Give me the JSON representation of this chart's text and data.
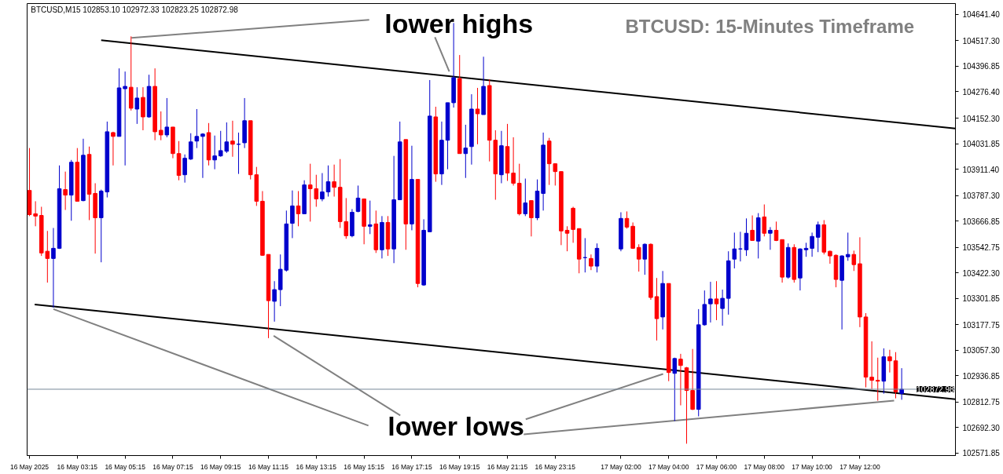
{
  "chart_data": {
    "type": "candlestick",
    "title": "BTCUSD: 15-Minutes Timeframe",
    "annotations": [
      "BTCUSD,M15  102853.10 102972.33 102823.25 102872.98",
      "lower highs",
      "lower lows"
    ],
    "x": [
      "2025-05-16T01:15",
      "2025-05-16T01:30",
      "2025-05-16T01:45",
      "2025-05-16T02:00",
      "2025-05-16T02:15",
      "2025-05-16T02:30",
      "2025-05-16T02:45",
      "2025-05-16T03:00",
      "2025-05-16T03:15",
      "2025-05-16T03:30",
      "2025-05-16T03:45",
      "2025-05-16T04:00",
      "2025-05-16T04:15",
      "2025-05-16T04:30",
      "2025-05-16T04:45",
      "2025-05-16T05:00",
      "2025-05-16T05:15",
      "2025-05-16T05:30",
      "2025-05-16T05:45",
      "2025-05-16T06:00",
      "2025-05-16T06:15",
      "2025-05-16T06:30",
      "2025-05-16T06:45",
      "2025-05-16T07:00",
      "2025-05-16T07:15",
      "2025-05-16T07:30",
      "2025-05-16T07:45",
      "2025-05-16T08:00",
      "2025-05-16T08:15",
      "2025-05-16T08:30",
      "2025-05-16T08:45",
      "2025-05-16T09:00",
      "2025-05-16T09:15",
      "2025-05-16T09:30",
      "2025-05-16T09:45",
      "2025-05-16T10:00",
      "2025-05-16T10:15",
      "2025-05-16T10:30",
      "2025-05-16T10:45",
      "2025-05-16T11:00",
      "2025-05-16T11:15",
      "2025-05-16T11:30",
      "2025-05-16T11:45",
      "2025-05-16T12:00",
      "2025-05-16T12:15",
      "2025-05-16T12:30",
      "2025-05-16T12:45",
      "2025-05-16T13:00",
      "2025-05-16T13:15",
      "2025-05-16T13:30",
      "2025-05-16T13:45",
      "2025-05-16T14:00",
      "2025-05-16T14:15",
      "2025-05-16T14:30",
      "2025-05-16T14:45",
      "2025-05-16T15:00",
      "2025-05-16T15:15",
      "2025-05-16T15:30",
      "2025-05-16T15:45",
      "2025-05-16T16:00",
      "2025-05-16T16:15",
      "2025-05-16T16:30",
      "2025-05-16T16:45",
      "2025-05-16T17:00",
      "2025-05-16T17:15",
      "2025-05-16T17:30",
      "2025-05-16T17:45",
      "2025-05-16T18:00",
      "2025-05-16T18:15",
      "2025-05-16T18:30",
      "2025-05-16T18:45",
      "2025-05-16T19:00",
      "2025-05-16T19:15",
      "2025-05-16T19:30",
      "2025-05-16T19:45",
      "2025-05-16T20:00",
      "2025-05-16T20:15",
      "2025-05-16T20:30",
      "2025-05-16T20:45",
      "2025-05-16T21:00",
      "2025-05-16T21:15",
      "2025-05-16T21:30",
      "2025-05-16T21:45",
      "2025-05-16T22:00",
      "2025-05-16T22:15",
      "2025-05-16T22:30",
      "2025-05-16T22:45",
      "2025-05-16T23:00",
      "2025-05-16T23:15",
      "2025-05-16T23:30",
      "2025-05-16T23:45",
      "2025-05-17T00:00",
      "2025-05-17T00:15",
      "2025-05-17T00:30",
      "2025-05-17T00:45",
      "2025-05-17T01:00",
      "2025-05-17T02:00",
      "2025-05-17T02:15",
      "2025-05-17T02:30",
      "2025-05-17T02:45",
      "2025-05-17T03:00",
      "2025-05-17T03:15",
      "2025-05-17T03:30",
      "2025-05-17T03:45",
      "2025-05-17T04:00",
      "2025-05-17T04:15",
      "2025-05-17T04:30",
      "2025-05-17T04:45",
      "2025-05-17T05:00",
      "2025-05-17T05:15",
      "2025-05-17T05:30",
      "2025-05-17T05:45",
      "2025-05-17T06:00",
      "2025-05-17T06:15",
      "2025-05-17T06:30",
      "2025-05-17T06:45",
      "2025-05-17T07:00",
      "2025-05-17T07:15",
      "2025-05-17T07:30",
      "2025-05-17T07:45",
      "2025-05-17T08:00",
      "2025-05-17T08:15",
      "2025-05-17T08:30",
      "2025-05-17T08:45",
      "2025-05-17T09:00",
      "2025-05-17T09:15",
      "2025-05-17T09:30",
      "2025-05-17T09:45",
      "2025-05-17T10:00",
      "2025-05-17T10:15",
      "2025-05-17T10:30",
      "2025-05-17T10:45",
      "2025-05-17T11:00",
      "2025-05-17T11:15",
      "2025-05-17T11:30",
      "2025-05-17T11:45",
      "2025-05-17T12:00",
      "2025-05-17T12:15",
      "2025-05-17T12:30",
      "2025-05-17T12:45",
      "2025-05-17T13:00",
      "2025-05-17T13:15",
      "2025-05-17T13:30",
      "2025-05-17T13:45"
    ],
    "xlim": [
      "2025-05-16T01:09",
      "2025-05-17T16:00"
    ],
    "xticks": [
      {
        "value": "2025-05-16T01:15",
        "label": "16 May 2025"
      },
      {
        "value": "2025-05-16T03:15",
        "label": "16 May 03:15"
      },
      {
        "value": "2025-05-16T05:15",
        "label": "16 May 05:15"
      },
      {
        "value": "2025-05-16T07:15",
        "label": "16 May 07:15"
      },
      {
        "value": "2025-05-16T09:15",
        "label": "16 May 09:15"
      },
      {
        "value": "2025-05-16T11:15",
        "label": "16 May 11:15"
      },
      {
        "value": "2025-05-16T13:15",
        "label": "16 May 13:15"
      },
      {
        "value": "2025-05-16T15:15",
        "label": "16 May 15:15"
      },
      {
        "value": "2025-05-16T17:15",
        "label": "16 May 17:15"
      },
      {
        "value": "2025-05-16T19:15",
        "label": "16 May 19:15"
      },
      {
        "value": "2025-05-16T21:15",
        "label": "16 May 21:15"
      },
      {
        "value": "2025-05-16T23:15",
        "label": "16 May 23:15"
      },
      {
        "value": "2025-05-17T02:00",
        "label": "17 May 02:00"
      },
      {
        "value": "2025-05-17T04:00",
        "label": "17 May 04:00"
      },
      {
        "value": "2025-05-17T06:00",
        "label": "17 May 06:00"
      },
      {
        "value": "2025-05-17T08:00",
        "label": "17 May 08:00"
      },
      {
        "value": "2025-05-17T10:00",
        "label": "17 May 10:00"
      },
      {
        "value": "2025-05-17T12:00",
        "label": "17 May 12:00"
      }
    ],
    "ylim": [
      102560,
      104693
    ],
    "yticks": [
      {
        "value": 102571.85,
        "label": "102571.85"
      },
      {
        "value": 102692.3,
        "label": "102692.30"
      },
      {
        "value": 102812.75,
        "label": "102812.75"
      },
      {
        "value": 102936.85,
        "label": "102936.85"
      },
      {
        "value": 103057.3,
        "label": "103057.30"
      },
      {
        "value": 103177.75,
        "label": "103177.75"
      },
      {
        "value": 103301.85,
        "label": "103301.85"
      },
      {
        "value": 103422.3,
        "label": "103422.30"
      },
      {
        "value": 103542.75,
        "label": "103542.75"
      },
      {
        "value": 103666.85,
        "label": "103666.85"
      },
      {
        "value": 103787.3,
        "label": "103787.30"
      },
      {
        "value": 103911.4,
        "label": "103911.40"
      },
      {
        "value": 104031.85,
        "label": "104031.85"
      },
      {
        "value": 104152.3,
        "label": "104152.30"
      },
      {
        "value": 104276.4,
        "label": "104276.40"
      },
      {
        "value": 104396.85,
        "label": "104396.85"
      },
      {
        "value": 104517.3,
        "label": "104517.30"
      },
      {
        "value": 104641.4,
        "label": "104641.40"
      }
    ],
    "grid": false,
    "ref_lines": [
      {
        "axis": "y",
        "value": 102872.98,
        "label": "102872.98",
        "color": "#778899"
      }
    ],
    "ohlc": [
      [
        103811,
        104011,
        103690,
        103697
      ],
      [
        103701,
        103760,
        103642,
        103690
      ],
      [
        103693,
        103734,
        103502,
        103516
      ],
      [
        103524,
        103620,
        103376,
        103490
      ],
      [
        103490,
        103634,
        103258,
        103538
      ],
      [
        103538,
        103929,
        103535,
        103819
      ],
      [
        103815,
        103900,
        103719,
        103789
      ],
      [
        103789,
        103955,
        103668,
        103944
      ],
      [
        103944,
        104011,
        103760,
        103760
      ],
      [
        103763,
        104055,
        103760,
        103977
      ],
      [
        103981,
        104018,
        103671,
        103793
      ],
      [
        103797,
        103845,
        103513,
        103682
      ],
      [
        103682,
        103815,
        103472,
        103808
      ],
      [
        103804,
        104136,
        103778,
        104088
      ],
      [
        104084,
        104088,
        103929,
        104066
      ],
      [
        104066,
        104387,
        104066,
        104295
      ],
      [
        104291,
        104372,
        103929,
        104302
      ],
      [
        104298,
        104538,
        104188,
        104199
      ],
      [
        104195,
        104298,
        104125,
        104247
      ],
      [
        104250,
        104298,
        104095,
        104158
      ],
      [
        104158,
        104357,
        104154,
        104302
      ],
      [
        104302,
        104387,
        104048,
        104088
      ],
      [
        104095,
        104184,
        104048,
        104073
      ],
      [
        104073,
        104247,
        104062,
        104110
      ],
      [
        104110,
        104110,
        103963,
        103985
      ],
      [
        103985,
        104044,
        103859,
        103882
      ],
      [
        103885,
        103981,
        103848,
        103963
      ],
      [
        103959,
        104081,
        103955,
        104040
      ],
      [
        104044,
        104195,
        104011,
        104066
      ],
      [
        104066,
        104081,
        103870,
        104077
      ],
      [
        104084,
        104129,
        103929,
        103955
      ],
      [
        103955,
        104070,
        103911,
        103974
      ],
      [
        103974,
        104092,
        103970,
        103999
      ],
      [
        103996,
        104132,
        103988,
        104040
      ],
      [
        104044,
        104140,
        103970,
        104029
      ],
      [
        104029,
        104084,
        103889,
        104029
      ],
      [
        104036,
        104247,
        104011,
        104140
      ],
      [
        104140,
        104140,
        103863,
        103885
      ],
      [
        103885,
        103922,
        103738,
        103760
      ],
      [
        103760,
        103808,
        103502,
        103505
      ],
      [
        103509,
        103509,
        103114,
        103291
      ],
      [
        103288,
        103383,
        103192,
        103343
      ],
      [
        103343,
        103509,
        103265,
        103439
      ],
      [
        103435,
        103716,
        103428,
        103653
      ],
      [
        103656,
        103811,
        103586,
        103738
      ],
      [
        103738,
        103808,
        103642,
        103701
      ],
      [
        103701,
        103859,
        103701,
        103837
      ],
      [
        103837,
        103937,
        103664,
        103819
      ],
      [
        103819,
        103885,
        103734,
        103771
      ],
      [
        103771,
        103893,
        103760,
        103804
      ],
      [
        103804,
        103929,
        103782,
        103852
      ],
      [
        103852,
        103933,
        103782,
        103826
      ],
      [
        103826,
        103959,
        103634,
        103664
      ],
      [
        103664,
        103775,
        103583,
        103597
      ],
      [
        103597,
        103723,
        103590,
        103708
      ],
      [
        103712,
        103834,
        103708,
        103775
      ],
      [
        103771,
        103771,
        103557,
        103642
      ],
      [
        103642,
        103763,
        103605,
        103649
      ],
      [
        103653,
        103716,
        103516,
        103531
      ],
      [
        103531,
        103690,
        103490,
        103660
      ],
      [
        103660,
        103690,
        103502,
        103535
      ],
      [
        103535,
        103974,
        103468,
        103767
      ],
      [
        103767,
        104136,
        103767,
        104040
      ],
      [
        104051,
        104051,
        103531,
        103653
      ],
      [
        103653,
        104022,
        103623,
        103863
      ],
      [
        103863,
        103863,
        103354,
        103372
      ],
      [
        103365,
        103675,
        103361,
        103623
      ],
      [
        103616,
        104332,
        103616,
        104162
      ],
      [
        104158,
        104206,
        103852,
        103889
      ],
      [
        103889,
        104136,
        103837,
        104048
      ],
      [
        104048,
        104225,
        103911,
        104225
      ],
      [
        104225,
        104601,
        104202,
        104343
      ],
      [
        104339,
        104450,
        103985,
        103985
      ],
      [
        103985,
        104121,
        103870,
        104011
      ],
      [
        104018,
        104265,
        103933,
        104195
      ],
      [
        104195,
        104295,
        104029,
        104173
      ],
      [
        104169,
        104442,
        104169,
        104302
      ],
      [
        104306,
        104335,
        103948,
        104048
      ],
      [
        104048,
        104095,
        103767,
        103889
      ],
      [
        103885,
        104092,
        103845,
        104022
      ],
      [
        104018,
        104125,
        103856,
        103893
      ],
      [
        103893,
        104062,
        103834,
        103845
      ],
      [
        103845,
        103937,
        103693,
        103701
      ],
      [
        103701,
        103867,
        103690,
        103752
      ],
      [
        103763,
        103763,
        103594,
        103682
      ],
      [
        103682,
        103863,
        103671,
        103808
      ],
      [
        103797,
        104084,
        103716,
        104025
      ],
      [
        104044,
        104059,
        103837,
        103937
      ],
      [
        103937,
        103937,
        103834,
        103900
      ],
      [
        103900,
        103900,
        103553,
        103620
      ],
      [
        103623,
        103642,
        103524,
        103609
      ],
      [
        103727,
        103734,
        103564,
        103627
      ],
      [
        103631,
        103631,
        103420,
        103487
      ],
      [
        103494,
        103586,
        103424,
        103494
      ],
      [
        103490,
        103509,
        103435,
        103454
      ],
      [
        103454,
        103561,
        103424,
        103538
      ],
      [
        103535,
        103708,
        103524,
        103679
      ],
      [
        103679,
        103712,
        103631,
        103638
      ],
      [
        103642,
        103660,
        103535,
        103538
      ],
      [
        103542,
        103557,
        103428,
        103487
      ],
      [
        103487,
        103561,
        103413,
        103557
      ],
      [
        103557,
        103561,
        103295,
        103306
      ],
      [
        103310,
        103398,
        103103,
        103206
      ],
      [
        103214,
        103431,
        103155,
        103372
      ],
      [
        103372,
        103372,
        102911,
        102952
      ],
      [
        102948,
        103022,
        102723,
        103018
      ],
      [
        103015,
        103040,
        102797,
        102985
      ],
      [
        102974,
        102978,
        102616,
        102867
      ],
      [
        102867,
        103063,
        102775,
        102778
      ],
      [
        102778,
        103251,
        102745,
        103177
      ],
      [
        103177,
        103339,
        103173,
        103273
      ],
      [
        103276,
        103380,
        103188,
        103299
      ],
      [
        103299,
        103383,
        103199,
        103276
      ],
      [
        103254,
        103343,
        103173,
        103302
      ],
      [
        103302,
        103524,
        103225,
        103479
      ],
      [
        103487,
        103612,
        103443,
        103535
      ],
      [
        103535,
        103616,
        103476,
        103535
      ],
      [
        103531,
        103679,
        103502,
        103609
      ],
      [
        103623,
        103693,
        103575,
        103575
      ],
      [
        103572,
        103704,
        103490,
        103682
      ],
      [
        103686,
        103745,
        103594,
        103609
      ],
      [
        103609,
        103638,
        103531,
        103623
      ],
      [
        103623,
        103664,
        103572,
        103575
      ],
      [
        103579,
        103579,
        103376,
        103402
      ],
      [
        103402,
        103561,
        103395,
        103542
      ],
      [
        103542,
        103557,
        103376,
        103391
      ],
      [
        103398,
        103538,
        103339,
        103535
      ],
      [
        103531,
        103564,
        103498,
        103538
      ],
      [
        103538,
        103612,
        103498,
        103594
      ],
      [
        103590,
        103664,
        103520,
        103649
      ],
      [
        103649,
        103671,
        103509,
        103520
      ],
      [
        103524,
        103527,
        103465,
        103502
      ],
      [
        103505,
        103509,
        103354,
        103391
      ],
      [
        103387,
        103505,
        103155,
        103502
      ],
      [
        103498,
        103612,
        103479,
        103509
      ],
      [
        103509,
        103527,
        103431,
        103461
      ],
      [
        103465,
        103590,
        103166,
        103214
      ],
      [
        103214,
        103232,
        102882,
        102930
      ],
      [
        102930,
        103099,
        102874,
        102915
      ],
      [
        102915,
        103022,
        102819,
        102911
      ],
      [
        102911,
        103066,
        102852,
        103026
      ],
      [
        103026,
        103059,
        102952,
        103007
      ],
      [
        103007,
        103048,
        102830,
        102860
      ],
      [
        102853.1,
        102972.33,
        102823.25,
        102872.98
      ]
    ],
    "colors": [
      "#ff0000",
      "#ff0000",
      "#ff0000",
      "#ff0000",
      "#0000cc",
      "#0000cc",
      "#ff0000",
      "#0000cc",
      "#ff0000",
      "#0000cc",
      "#ff0000",
      "#ff0000",
      "#0000cc",
      "#0000cc",
      "#ff0000",
      "#0000cc",
      "#0000cc",
      "#ff0000",
      "#0000cc",
      "#ff0000",
      "#0000cc",
      "#ff0000",
      "#ff0000",
      "#0000cc",
      "#ff0000",
      "#ff0000",
      "#0000cc",
      "#0000cc",
      "#0000cc",
      "#0000cc",
      "#ff0000",
      "#0000cc",
      "#0000cc",
      "#0000cc",
      "#ff0000",
      "#0000cc",
      "#0000cc",
      "#ff0000",
      "#ff0000",
      "#ff0000",
      "#ff0000",
      "#0000cc",
      "#0000cc",
      "#0000cc",
      "#0000cc",
      "#ff0000",
      "#0000cc",
      "#ff0000",
      "#ff0000",
      "#0000cc",
      "#0000cc",
      "#ff0000",
      "#ff0000",
      "#ff0000",
      "#0000cc",
      "#0000cc",
      "#ff0000",
      "#0000cc",
      "#ff0000",
      "#0000cc",
      "#ff0000",
      "#0000cc",
      "#0000cc",
      "#ff0000",
      "#0000cc",
      "#ff0000",
      "#0000cc",
      "#0000cc",
      "#ff0000",
      "#0000cc",
      "#0000cc",
      "#0000cc",
      "#ff0000",
      "#0000cc",
      "#0000cc",
      "#ff0000",
      "#0000cc",
      "#ff0000",
      "#ff0000",
      "#0000cc",
      "#ff0000",
      "#ff0000",
      "#ff0000",
      "#0000cc",
      "#ff0000",
      "#0000cc",
      "#0000cc",
      "#ff0000",
      "#ff0000",
      "#ff0000",
      "#ff0000",
      "#ff0000",
      "#ff0000",
      "#0000cc",
      "#ff0000",
      "#0000cc",
      "#0000cc",
      "#ff0000",
      "#ff0000",
      "#ff0000",
      "#0000cc",
      "#ff0000",
      "#ff0000",
      "#0000cc",
      "#ff0000",
      "#0000cc",
      "#ff0000",
      "#ff0000",
      "#ff0000",
      "#0000cc",
      "#0000cc",
      "#0000cc",
      "#ff0000",
      "#0000cc",
      "#0000cc",
      "#0000cc",
      "#0000cc",
      "#0000cc",
      "#ff0000",
      "#0000cc",
      "#ff0000",
      "#0000cc",
      "#ff0000",
      "#ff0000",
      "#0000cc",
      "#ff0000",
      "#0000cc",
      "#0000cc",
      "#0000cc",
      "#0000cc",
      "#ff0000",
      "#ff0000",
      "#ff0000",
      "#0000cc",
      "#0000cc",
      "#ff0000",
      "#ff0000",
      "#ff0000",
      "#ff0000",
      "#ff0000",
      "#0000cc",
      "#ff0000",
      "#ff0000",
      "#0000cc"
    ],
    "series": [
      {
        "type": "line",
        "color": "#000000",
        "x": [
          "2025-05-16T04:15",
          "2025-05-17T16:00"
        ],
        "values": [
          104520,
          104103
        ]
      },
      {
        "type": "line",
        "color": "#000000",
        "x": [
          "2025-05-16T01:28",
          "2025-05-17T16:00"
        ],
        "values": [
          103273,
          102826
        ]
      },
      {
        "type": "line",
        "color": "#808080",
        "x": [
          "2025-05-16T05:31",
          "2025-05-16T15:28"
        ],
        "values": [
          104531,
          104616
        ]
      },
      {
        "type": "line",
        "color": "#808080",
        "x": [
          "2025-05-16T18:13",
          "2025-05-16T18:49"
        ],
        "values": [
          104534,
          104372
        ]
      },
      {
        "type": "line",
        "color": "#808080",
        "x": [
          "2025-05-16T02:15",
          "2025-05-16T15:26"
        ],
        "values": [
          103251,
          102701
        ]
      },
      {
        "type": "line",
        "color": "#808080",
        "x": [
          "2025-05-16T11:28",
          "2025-05-16T16:46"
        ],
        "values": [
          103125,
          102749
        ]
      },
      {
        "type": "line",
        "color": "#808080",
        "x": [
          "2025-05-16T22:01",
          "2025-05-17T03:46"
        ],
        "values": [
          102731,
          102945
        ]
      },
      {
        "type": "line",
        "color": "#808080",
        "x": [
          "2025-05-16T21:56",
          "2025-05-17T13:26"
        ],
        "values": [
          102660,
          102819
        ]
      }
    ]
  }
}
